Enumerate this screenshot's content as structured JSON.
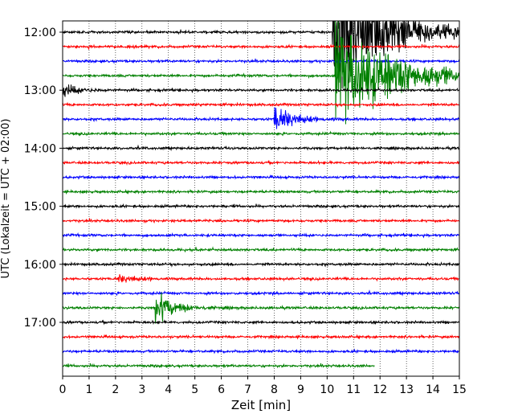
{
  "chart_data": {
    "type": "line",
    "title": "",
    "xlabel": "Zeit  [min]",
    "ylabel": "UTC (Lokalzeit = UTC + 02:00)",
    "xlim": [
      0,
      15
    ],
    "x_ticks": [
      "0",
      "1",
      "2",
      "3",
      "4",
      "5",
      "6",
      "7",
      "8",
      "9",
      "10",
      "11",
      "12",
      "13",
      "14",
      "15"
    ],
    "y_ticks": [
      "12:00",
      "13:00",
      "14:00",
      "15:00",
      "16:00",
      "17:00"
    ],
    "start_time": "12:00",
    "end_time": "18:00",
    "trace_interval_min": 15,
    "grid": "vertical dotted",
    "trace_colors": [
      "#000000",
      "#ff0000",
      "#0000ff",
      "#008000"
    ],
    "last_trace_end_min": 11.8,
    "events": [
      {
        "trace_start": "12:00",
        "onset_min": 10.2,
        "amplitude": "very large",
        "color": "#008000"
      },
      {
        "trace_start": "12:45",
        "onset_min": 10.3,
        "amplitude": "very large",
        "color": "#008000"
      },
      {
        "trace_start": "13:00",
        "onset_min": 0.0,
        "amplitude": "medium",
        "color": "#000000"
      },
      {
        "trace_start": "13:30",
        "onset_min": 8.0,
        "amplitude": "large",
        "color": "#0000ff"
      },
      {
        "trace_start": "16:15",
        "onset_min": 2.1,
        "amplitude": "small",
        "color": "#ff0000"
      },
      {
        "trace_start": "16:45",
        "onset_min": 3.5,
        "amplitude": "large",
        "color": "#008000"
      }
    ]
  }
}
